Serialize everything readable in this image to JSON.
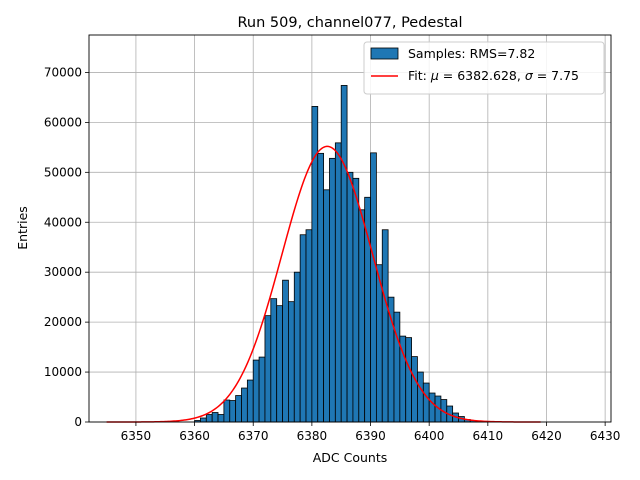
{
  "chart_data": {
    "type": "bar",
    "title": "Run 509, channel077, Pedestal",
    "xlabel": "ADC Counts",
    "ylabel": "Entries",
    "xlim": [
      6342,
      6431
    ],
    "ylim": [
      0,
      77500
    ],
    "xticks": [
      6350,
      6360,
      6370,
      6380,
      6390,
      6400,
      6410,
      6420,
      6430
    ],
    "yticks": [
      0,
      10000,
      20000,
      30000,
      40000,
      50000,
      60000,
      70000
    ],
    "grid": true,
    "legend_position": "top-right",
    "histogram": {
      "name": "Samples: RMS=7.82",
      "color": "#1f77b4",
      "bin_start": 6360,
      "bin_width": 1,
      "values": [
        300,
        800,
        1500,
        1900,
        1500,
        4400,
        4300,
        5300,
        6800,
        8400,
        12400,
        13000,
        21300,
        24700,
        23300,
        28400,
        24100,
        30000,
        37500,
        38500,
        63200,
        53800,
        46500,
        52800,
        55900,
        67400,
        50000,
        48800,
        42500,
        45000,
        53900,
        31500,
        38500,
        25000,
        22000,
        17200,
        16900,
        13100,
        10000,
        7800,
        5800,
        5200,
        4500,
        3200,
        1800,
        1100,
        500,
        300,
        150,
        80
      ]
    },
    "fit": {
      "name": "Fit: μ = 6382.628, σ = 7.75",
      "label_prefix": "Fit: ",
      "mu_symbol": "μ",
      "mu_text": " = 6382.628, ",
      "sigma_symbol": "σ",
      "sigma_text": " = 7.75",
      "color": "#ff0000",
      "mu": 6382.628,
      "sigma": 7.75,
      "amplitude": 55200,
      "x_range": [
        6345,
        6419
      ]
    }
  }
}
